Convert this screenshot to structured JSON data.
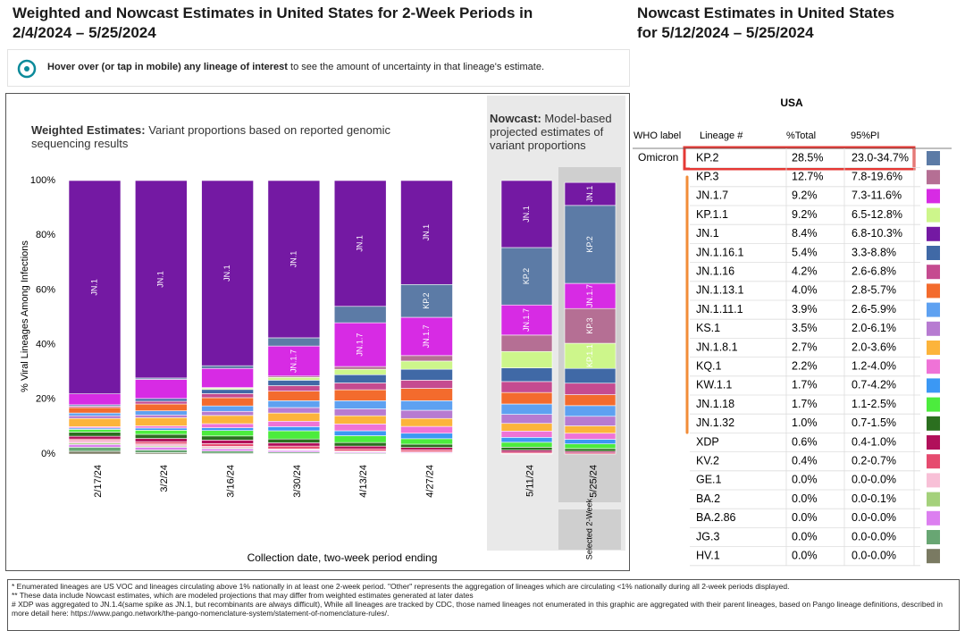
{
  "header": {
    "title_line1": "Weighted and Nowcast Estimates in United States for 2-Week Periods in",
    "title_line2": "2/4/2024 – 5/25/2024",
    "info_bold": "Hover over (or tap in mobile) any lineage of interest",
    "info_text": " to see the amount of uncertainty in that lineage's estimate."
  },
  "chart_data": [
    {
      "type": "bar",
      "title": "Weighted Estimates:",
      "subtitle": " Variant proportions based on reported genomic sequencing results",
      "ylabel": "% Viral Lineages Among Infections",
      "xlabel": "Collection date, two-week period ending",
      "categories": [
        "2/17/24",
        "3/2/24",
        "3/16/24",
        "3/30/24",
        "4/13/24",
        "4/27/24"
      ],
      "ylim": [
        0,
        100
      ],
      "yticks": [
        {
          "value": 0,
          "label": "0%"
        },
        {
          "value": 20,
          "label": "20%"
        },
        {
          "value": 40,
          "label": "40%"
        },
        {
          "value": 60,
          "label": "60%"
        },
        {
          "value": 80,
          "label": "80%"
        },
        {
          "value": 100,
          "label": "100%"
        }
      ],
      "series": [
        {
          "name": "HV.1",
          "color": "#7a7a62",
          "values": [
            1,
            0.5,
            0.3,
            0.2,
            0.1,
            0.1
          ]
        },
        {
          "name": "JG.3",
          "color": "#68a673",
          "values": [
            1.5,
            1,
            0.8,
            0.5,
            0.3,
            0.2
          ]
        },
        {
          "name": "BA.2.86",
          "color": "#dc7ff0",
          "values": [
            1,
            1,
            0.8,
            0.6,
            0.4,
            0.3
          ]
        },
        {
          "name": "BA.2",
          "color": "#a4d17b",
          "values": [
            0.5,
            0.4,
            0.3,
            0.2,
            0.1,
            0.1
          ]
        },
        {
          "name": "GE.1",
          "color": "#f8c0d7",
          "values": [
            1,
            0.8,
            0.6,
            0.4,
            0.2,
            0.1
          ]
        },
        {
          "name": "KV.2",
          "color": "#e64b6f",
          "values": [
            0.5,
            0.8,
            1,
            1,
            0.8,
            0.7
          ]
        },
        {
          "name": "XDP",
          "color": "#b1105b",
          "values": [
            1,
            1.2,
            1.3,
            1.2,
            1,
            0.9
          ]
        },
        {
          "name": "JN.1.32",
          "color": "#2b6f1f",
          "values": [
            1.5,
            1.5,
            1.5,
            1.4,
            1.3,
            1.2
          ]
        },
        {
          "name": "JN.1.18",
          "color": "#4cec3d",
          "values": [
            1,
            1.5,
            2,
            3,
            2.5,
            2
          ]
        },
        {
          "name": "KW.1.1",
          "color": "#3b98f4",
          "values": [
            0.5,
            0.8,
            1,
            1.5,
            1.8,
            2
          ]
        },
        {
          "name": "KQ.1",
          "color": "#ef73d7",
          "values": [
            0.5,
            0.8,
            1.5,
            2,
            2.5,
            2.5
          ]
        },
        {
          "name": "JN.1.8.1",
          "color": "#fcb43b",
          "values": [
            3,
            3,
            3,
            3,
            3,
            2.9
          ]
        },
        {
          "name": "KS.1",
          "color": "#b77bd1",
          "values": [
            1,
            1,
            1.5,
            2,
            2.5,
            3
          ]
        },
        {
          "name": "JN.1.11.1",
          "color": "#5ea1f1",
          "values": [
            1,
            1.5,
            2,
            2.5,
            3,
            3.5
          ]
        },
        {
          "name": "JN.1.13.1",
          "color": "#f36b2d",
          "values": [
            2,
            2.5,
            3,
            3.5,
            4,
            4.5
          ]
        },
        {
          "name": "JN.1.16",
          "color": "#c54b90",
          "values": [
            0.5,
            1,
            1.5,
            2,
            2.5,
            3
          ]
        },
        {
          "name": "JN.1.16.1",
          "color": "#4069a6",
          "values": [
            0.5,
            1,
            1.5,
            2,
            3,
            4
          ]
        },
        {
          "name": "KP.1.1",
          "color": "#cdf68b",
          "values": [
            0,
            0,
            0.5,
            1,
            2,
            3
          ]
        },
        {
          "name": "KP.3",
          "color": "#b56f94",
          "values": [
            0,
            0,
            0.2,
            0.5,
            1,
            2
          ]
        },
        {
          "name": "JN.1.7",
          "color": "#d72be4",
          "values": [
            4,
            7,
            7,
            11,
            16,
            14
          ]
        },
        {
          "name": "KP.2",
          "color": "#5c7ba6",
          "values": [
            0,
            0.5,
            1,
            3,
            6,
            12
          ]
        },
        {
          "name": "JN.1",
          "color": "#7419a3",
          "values": [
            78,
            72.2,
            67.7,
            57.5,
            46,
            38
          ]
        }
      ]
    },
    {
      "type": "bar",
      "title": "Nowcast:",
      "subtitle": " Model-based projected estimates of variant proportions",
      "categories": [
        "5/11/24",
        "5/25/24"
      ],
      "selected_label": "Selected 2-Week",
      "ylim": [
        0,
        100
      ],
      "series": [
        {
          "name": "HV.1",
          "color": "#7a7a62",
          "values": [
            0,
            0
          ]
        },
        {
          "name": "JG.3",
          "color": "#68a673",
          "values": [
            0.1,
            0
          ]
        },
        {
          "name": "BA.2.86",
          "color": "#dc7ff0",
          "values": [
            0.1,
            0
          ]
        },
        {
          "name": "BA.2",
          "color": "#a4d17b",
          "values": [
            0,
            0
          ]
        },
        {
          "name": "GE.1",
          "color": "#f8c0d7",
          "values": [
            0,
            0
          ]
        },
        {
          "name": "KV.2",
          "color": "#e64b6f",
          "values": [
            0.5,
            0.4
          ]
        },
        {
          "name": "XDP",
          "color": "#b1105b",
          "values": [
            0.7,
            0.6
          ]
        },
        {
          "name": "JN.1.32",
          "color": "#2b6f1f",
          "values": [
            1.1,
            1
          ]
        },
        {
          "name": "JN.1.18",
          "color": "#4cec3d",
          "values": [
            1.8,
            1.7
          ]
        },
        {
          "name": "KW.1.1",
          "color": "#3b98f4",
          "values": [
            1.8,
            1.7
          ]
        },
        {
          "name": "KQ.1",
          "color": "#ef73d7",
          "values": [
            2.3,
            2.2
          ]
        },
        {
          "name": "JN.1.8.1",
          "color": "#fcb43b",
          "values": [
            2.8,
            2.7
          ]
        },
        {
          "name": "KS.1",
          "color": "#b77bd1",
          "values": [
            3.3,
            3.5
          ]
        },
        {
          "name": "JN.1.11.1",
          "color": "#5ea1f1",
          "values": [
            3.8,
            3.9
          ]
        },
        {
          "name": "JN.1.13.1",
          "color": "#f36b2d",
          "values": [
            4.2,
            4
          ]
        },
        {
          "name": "JN.1.16",
          "color": "#c54b90",
          "values": [
            4,
            4.2
          ]
        },
        {
          "name": "JN.1.16.1",
          "color": "#4069a6",
          "values": [
            5,
            5.4
          ]
        },
        {
          "name": "KP.1.1",
          "color": "#cdf68b",
          "values": [
            6,
            9.2
          ]
        },
        {
          "name": "KP.3",
          "color": "#b56f94",
          "values": [
            6,
            12.7
          ]
        },
        {
          "name": "JN.1.7",
          "color": "#d72be4",
          "values": [
            11,
            9.2
          ]
        },
        {
          "name": "KP.2",
          "color": "#5c7ba6",
          "values": [
            21,
            28.5
          ]
        },
        {
          "name": "JN.1",
          "color": "#7419a3",
          "values": [
            24.5,
            8.4
          ]
        }
      ]
    }
  ],
  "table": {
    "title_line1": "Nowcast Estimates in United States",
    "title_line2": "for 5/12/2024 – 5/25/2024",
    "region": "USA",
    "columns": [
      "WHO label",
      "Lineage #",
      "%Total",
      "95%PI"
    ],
    "rows": [
      {
        "who": "Omicron",
        "lineage": "KP.2",
        "total": "28.5%",
        "pi": "23.0-34.7%",
        "color": "#5c7ba6"
      },
      {
        "lineage": "KP.3",
        "total": "12.7%",
        "pi": "7.8-19.6%",
        "color": "#b56f94"
      },
      {
        "lineage": "JN.1.7",
        "total": "9.2%",
        "pi": "7.3-11.6%",
        "color": "#d72be4"
      },
      {
        "lineage": "KP.1.1",
        "total": "9.2%",
        "pi": "6.5-12.8%",
        "color": "#cdf68b"
      },
      {
        "lineage": "JN.1",
        "total": "8.4%",
        "pi": "6.8-10.3%",
        "color": "#7419a3"
      },
      {
        "lineage": "JN.1.16.1",
        "total": "5.4%",
        "pi": "3.3-8.8%",
        "color": "#4069a6"
      },
      {
        "lineage": "JN.1.16",
        "total": "4.2%",
        "pi": "2.6-6.8%",
        "color": "#c54b90"
      },
      {
        "lineage": "JN.1.13.1",
        "total": "4.0%",
        "pi": "2.8-5.7%",
        "color": "#f36b2d"
      },
      {
        "lineage": "JN.1.11.1",
        "total": "3.9%",
        "pi": "2.6-5.9%",
        "color": "#5ea1f1"
      },
      {
        "lineage": "KS.1",
        "total": "3.5%",
        "pi": "2.0-6.1%",
        "color": "#b77bd1"
      },
      {
        "lineage": "JN.1.8.1",
        "total": "2.7%",
        "pi": "2.0-3.6%",
        "color": "#fcb43b"
      },
      {
        "lineage": "KQ.1",
        "total": "2.2%",
        "pi": "1.2-4.0%",
        "color": "#ef73d7"
      },
      {
        "lineage": "KW.1.1",
        "total": "1.7%",
        "pi": "0.7-4.2%",
        "color": "#3b98f4"
      },
      {
        "lineage": "JN.1.18",
        "total": "1.7%",
        "pi": "1.1-2.5%",
        "color": "#4cec3d"
      },
      {
        "lineage": "JN.1.32",
        "total": "1.0%",
        "pi": "0.7-1.5%",
        "color": "#2b6f1f"
      },
      {
        "lineage": "XDP",
        "total": "0.6%",
        "pi": "0.4-1.0%",
        "color": "#b1105b"
      },
      {
        "lineage": "KV.2",
        "total": "0.4%",
        "pi": "0.2-0.7%",
        "color": "#e64b6f"
      },
      {
        "lineage": "GE.1",
        "total": "0.0%",
        "pi": "0.0-0.0%",
        "color": "#f8c0d7"
      },
      {
        "lineage": "BA.2",
        "total": "0.0%",
        "pi": "0.0-0.1%",
        "color": "#a4d17b"
      },
      {
        "lineage": "BA.2.86",
        "total": "0.0%",
        "pi": "0.0-0.0%",
        "color": "#dc7ff0"
      },
      {
        "lineage": "JG.3",
        "total": "0.0%",
        "pi": "0.0-0.0%",
        "color": "#68a673"
      },
      {
        "lineage": "HV.1",
        "total": "0.0%",
        "pi": "0.0-0.0%",
        "color": "#7a7a62"
      }
    ]
  },
  "footnotes": [
    "*      Enumerated lineages are US VOC and lineages circulating above 1% nationally in at least one 2-week period. \"Other\" represents the aggregation of lineages which are circulating <1% nationally during all 2-week periods displayed.",
    "**     These data include Nowcast estimates, which are modeled projections that may differ from weighted estimates generated at later dates",
    "# XDP was aggregated to JN.1.4(same spike as JN.1, but recombinants are always difficult),  While all lineages are tracked by CDC, those named lineages not enumerated in this graphic are aggregated with their parent lineages, based on Pango lineage definitions, described in more detail here: https://www.pango.network/the-pango-nomenclature-system/statement-of-nomenclature-rules/."
  ]
}
